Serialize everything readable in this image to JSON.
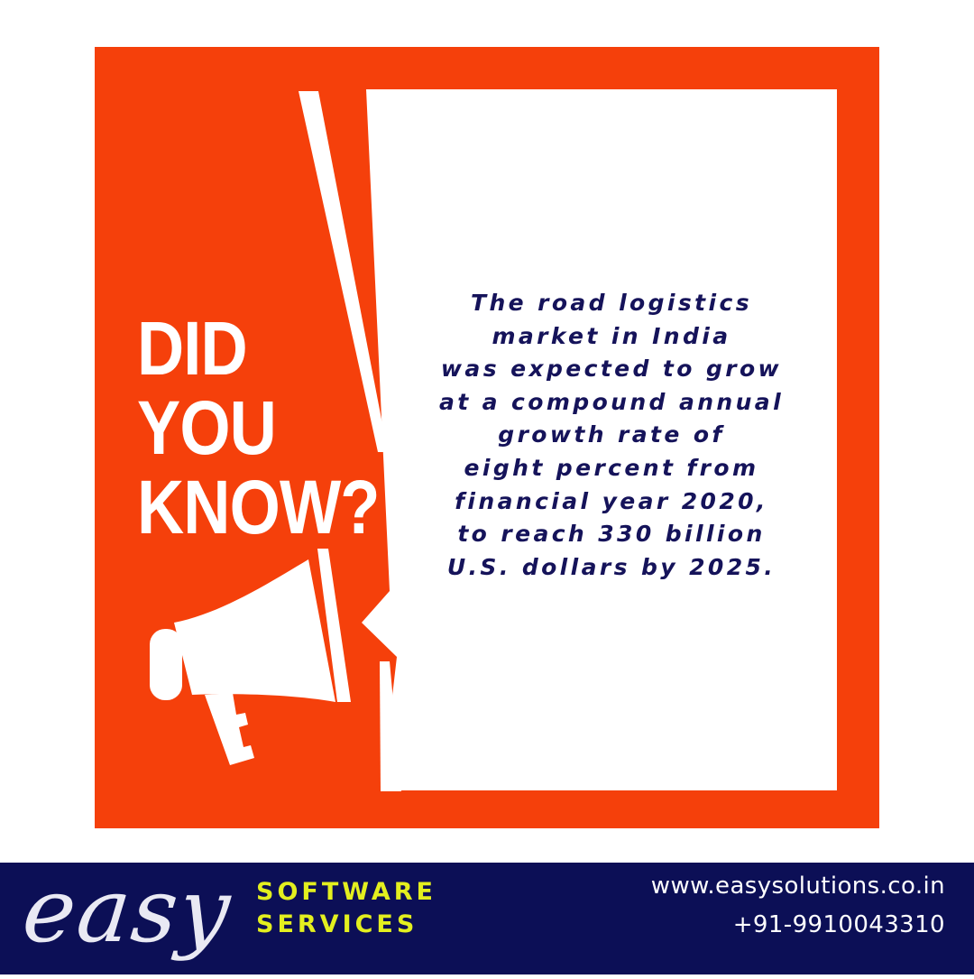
{
  "headline": {
    "line1": "DID",
    "line2": "YOU",
    "line3": "KNOW?"
  },
  "fact": {
    "lines": [
      "The road logistics",
      "market in India",
      "was expected to grow",
      "at a compound annual",
      "growth rate of",
      "eight percent from",
      "financial year 2020,",
      "to reach 330 billion",
      "U.S. dollars by 2025."
    ]
  },
  "footer": {
    "brand_script": "easy",
    "brand_line1": "SOFTWARE",
    "brand_line2": "SERVICES",
    "website": "www.easysolutions.co.in",
    "phone": "+91-9910043310"
  },
  "colors": {
    "accent_orange": "#f5400b",
    "navy": "#0c0f56",
    "text_navy": "#15135a",
    "brand_yellow": "#e3ef1f",
    "white": "#ffffff"
  },
  "icons": [
    "megaphone-icon",
    "speech-bubble-icon"
  ]
}
